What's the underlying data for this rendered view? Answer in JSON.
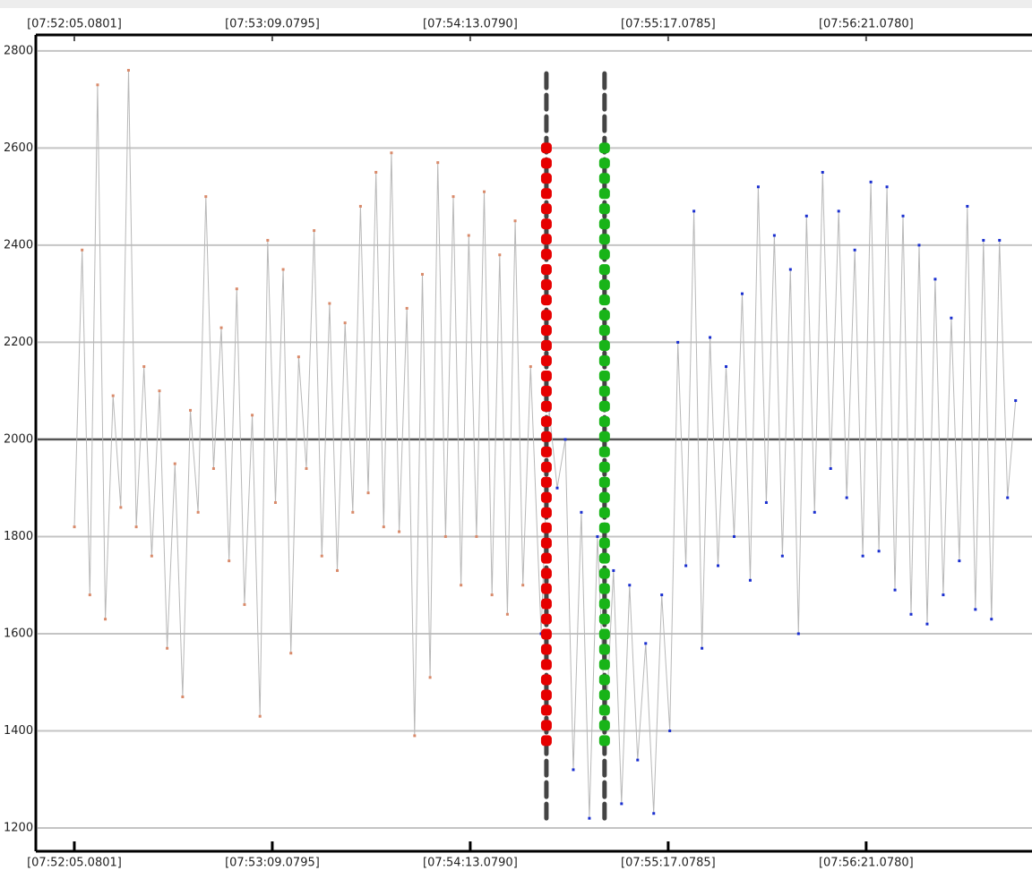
{
  "chart_data": {
    "type": "line",
    "xlim": [
      28301.05,
      28634.7
    ],
    "ylim": [
      1154,
      2831
    ],
    "xticks": [
      {
        "value": 28325.0801,
        "label": "[07:52:05.0801]"
      },
      {
        "value": 28389.0795,
        "label": "[07:53:09.0795]"
      },
      {
        "value": 28453.079,
        "label": "[07:54:13.0790]"
      },
      {
        "value": 28517.0785,
        "label": "[07:55:17.0785]"
      },
      {
        "value": 28581.078,
        "label": "[07:56:21.0780]"
      }
    ],
    "yticks": [
      1200,
      1400,
      1600,
      1800,
      2000,
      2200,
      2400,
      2600,
      2800
    ],
    "baseline": 2000,
    "grid": true,
    "line_color": "#b8b8b8",
    "series": [
      {
        "color": "#d98a6a",
        "x": [
          28325.1,
          28327.6,
          28330.1,
          28332.6,
          28335.1,
          28337.6,
          28340.1,
          28342.6,
          28345.1,
          28347.6,
          28350.1,
          28352.6,
          28355.1,
          28357.6,
          28360.1,
          28362.6,
          28365.1,
          28367.6,
          28370.1,
          28372.6,
          28375.1,
          28377.6,
          28380.1,
          28382.6,
          28385.1,
          28387.6,
          28390.1,
          28392.6,
          28395.1,
          28397.6,
          28400.1,
          28402.6,
          28405.1,
          28407.6,
          28410.1,
          28412.6,
          28415.1,
          28417.6,
          28420.1,
          28422.6,
          28425.1,
          28427.6,
          28430.1,
          28432.6,
          28435.1,
          28437.6,
          28440.1,
          28442.6,
          28445.1,
          28447.6,
          28450.1,
          28452.6,
          28455.1,
          28457.6,
          28460.1,
          28462.6,
          28465.1,
          28467.6,
          28470.1,
          28472.6
        ],
        "values": [
          1820,
          2390,
          1680,
          2730,
          1630,
          2090,
          1860,
          2760,
          1820,
          2150,
          1760,
          2100,
          1570,
          1950,
          1470,
          2060,
          1850,
          2500,
          1940,
          2230,
          1750,
          2310,
          1660,
          2050,
          1430,
          2410,
          1870,
          2350,
          1560,
          2170,
          1940,
          2430,
          1760,
          2280,
          1730,
          2240,
          1850,
          2480,
          1890,
          2550,
          1820,
          2590,
          1810,
          2270,
          1390,
          2340,
          1510,
          2570,
          1800,
          2500,
          1700,
          2420,
          1800,
          2510,
          1680,
          2380,
          1640,
          2450,
          1700,
          2150
        ]
      },
      {
        "color": "#1a2fd0",
        "x": [
          28476.0,
          28478.6,
          28481.2,
          28483.8,
          28486.4,
          28489.0,
          28491.6,
          28494.2,
          28496.8,
          28499.4,
          28502.0,
          28504.6,
          28507.2,
          28509.8,
          28512.4,
          28515.0,
          28517.6,
          28520.2,
          28522.8,
          28525.4,
          28528.0,
          28530.6,
          28533.2,
          28535.8,
          28538.4,
          28541.0,
          28543.6,
          28546.2,
          28548.8,
          28551.4,
          28554.0,
          28556.6,
          28559.2,
          28561.8,
          28564.4,
          28567.0,
          28569.6,
          28572.2,
          28574.8,
          28577.4,
          28580.0,
          28582.6,
          28585.2,
          28587.8,
          28590.4,
          28593.0,
          28595.6,
          28598.2,
          28600.8,
          28603.4,
          28606.0,
          28608.6,
          28611.2,
          28613.8,
          28616.4,
          28619.0,
          28621.6,
          28624.2,
          28626.8,
          28629.4
        ],
        "values": [
          1600,
          2060,
          1900,
          2000,
          1320,
          1850,
          1220,
          1800,
          1400,
          1730,
          1250,
          1700,
          1340,
          1580,
          1230,
          1680,
          1400,
          2200,
          1740,
          2470,
          1570,
          2210,
          1740,
          2150,
          1800,
          2300,
          1710,
          2520,
          1870,
          2420,
          1760,
          2350,
          1600,
          2460,
          1850,
          2550,
          1940,
          2470,
          1880,
          2390,
          1760,
          2530,
          1770,
          2520,
          1690,
          2460,
          1640,
          2400,
          1620,
          2330,
          1680,
          2250,
          1750,
          2480,
          1650,
          2410,
          1630,
          2410,
          1880,
          2080
        ]
      }
    ],
    "markers": [
      {
        "x": 28477.7,
        "color": "#e60000",
        "dots": [
          1380,
          2600
        ],
        "dash": [
          1220,
          2760
        ]
      },
      {
        "x": 28496.5,
        "color": "#18b418",
        "dots": [
          1380,
          2600
        ],
        "dash": [
          1220,
          2760
        ]
      }
    ]
  }
}
